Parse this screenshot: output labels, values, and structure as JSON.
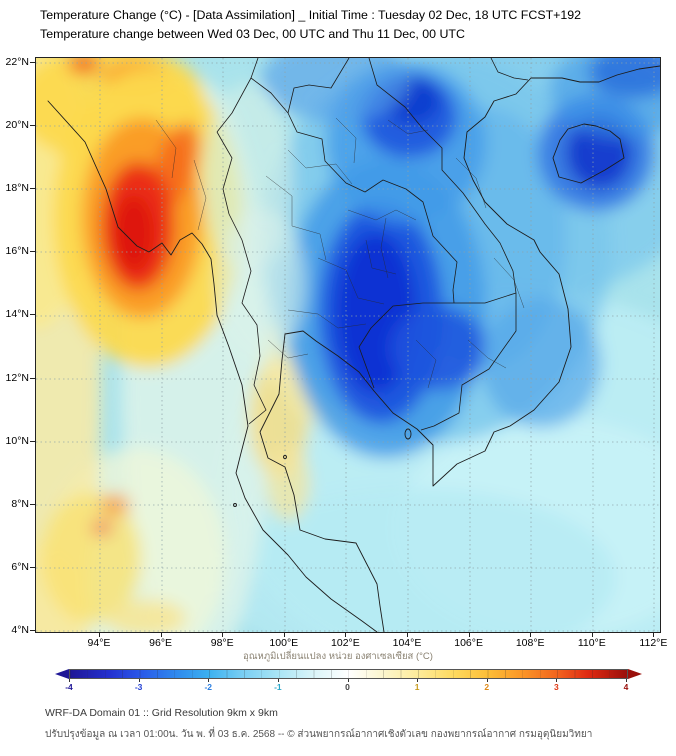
{
  "title": {
    "line1": "Temperature Change (°C) - [Data Assimilation] _ Initial Time : Tuesday 02 Dec, 18 UTC FCST+192",
    "line2": "Temperature change between Wed 03 Dec, 00 UTC and Thu 11 Dec, 00 UTC"
  },
  "map": {
    "lat_ticks": [
      "22°N",
      "20°N",
      "18°N",
      "16°N",
      "14°N",
      "12°N",
      "10°N",
      "8°N",
      "6°N",
      "4°N"
    ],
    "lon_ticks": [
      "94°E",
      "96°E",
      "98°E",
      "100°E",
      "102°E",
      "104°E",
      "106°E",
      "108°E",
      "110°E",
      "112°E"
    ],
    "extent": {
      "lon_min_E": 94,
      "lon_max_E": 112,
      "lat_min_N": 4,
      "lat_max_N": 22
    }
  },
  "colorbar": {
    "label": "อุณหภูมิเปลี่ยนแปลง หน่วย องศาเซลเซียส (°C)",
    "ticks": [
      {
        "v": "-4",
        "c": "#1f1796"
      },
      {
        "v": "-3",
        "c": "#2440d4"
      },
      {
        "v": "-2",
        "c": "#2a7de0"
      },
      {
        "v": "-1",
        "c": "#2aa6c8"
      },
      {
        "v": "0",
        "c": "#444444"
      },
      {
        "v": "1",
        "c": "#c79b1e"
      },
      {
        "v": "2",
        "c": "#e08a18"
      },
      {
        "v": "3",
        "c": "#e03914"
      },
      {
        "v": "4",
        "c": "#9a100b"
      }
    ],
    "stops": [
      {
        "p": 0,
        "c": "#1f1796"
      },
      {
        "p": 7,
        "c": "#2430cf"
      },
      {
        "p": 12.5,
        "c": "#2a57e8"
      },
      {
        "p": 19,
        "c": "#2f89ee"
      },
      {
        "p": 25,
        "c": "#3cb1f0"
      },
      {
        "p": 31,
        "c": "#79cef3"
      },
      {
        "p": 37.5,
        "c": "#aae5f5"
      },
      {
        "p": 44,
        "c": "#dcf5f9"
      },
      {
        "p": 50,
        "c": "#ffffff"
      },
      {
        "p": 56,
        "c": "#fcf6cf"
      },
      {
        "p": 62.5,
        "c": "#fdeb9a"
      },
      {
        "p": 69,
        "c": "#fdd95e"
      },
      {
        "p": 75,
        "c": "#fdbe38"
      },
      {
        "p": 81,
        "c": "#fb9727"
      },
      {
        "p": 87.5,
        "c": "#f2641e"
      },
      {
        "p": 93,
        "c": "#df2a12"
      },
      {
        "p": 100,
        "c": "#9a100b"
      }
    ]
  },
  "footer": {
    "line1": "WRF-DA Domain 01 :: Grid Resolution 9km x 9km",
    "line2": "ปรับปรุงข้อมูล ณ เวลา 01:00น. วัน พ. ที่ 03 ธ.ค. 2568 -- © ส่วนพยากรณ์อากาศเชิงตัวเลข กองพยากรณ์อากาศ กรมอุตุนิยมวิทยา"
  },
  "chart_data": {
    "type": "heatmap",
    "title": "Temperature change (°C) between Wed 03 Dec 00 UTC and Thu 11 Dec 00 UTC",
    "x_range_lon_E": [
      94,
      112
    ],
    "y_range_lat_N": [
      4,
      22
    ],
    "value_range_C": [
      -4,
      4
    ],
    "features": [
      {
        "label": "warming maximum over western Myanmar coast",
        "lon_E": 95.4,
        "lat_N": 17.0,
        "approx_value_C": 3.5
      },
      {
        "label": "surrounding warm area (yellow/orange band, west edge)",
        "lon_E": 95.5,
        "lat_N": 19.5,
        "approx_value_C": 1.5
      },
      {
        "label": "cooling maximum over central Indochina (NE Thailand/Cambodia)",
        "lon_E": 103.0,
        "lat_N": 13.8,
        "approx_value_C": -3.5
      },
      {
        "label": "cooling over northern Laos / northern Vietnam",
        "lon_E": 104.0,
        "lat_N": 20.0,
        "approx_value_C": -3.0
      },
      {
        "label": "cooling near Hainan",
        "lon_E": 110.2,
        "lat_N": 19.2,
        "approx_value_C": -3.0
      },
      {
        "label": "cooling at top-right corner",
        "lon_E": 111.5,
        "lat_N": 21.8,
        "approx_value_C": -3.0
      },
      {
        "label": "mild warming southern Thai peninsula",
        "lon_E": 99.8,
        "lat_N": 10.5,
        "approx_value_C": 1.0
      },
      {
        "label": "mild warming lower-left ocean area",
        "lon_E": 94.0,
        "lat_N": 6.5,
        "approx_value_C": 1.0
      },
      {
        "label": "background mild cooling over most of domain",
        "lon_E": null,
        "lat_N": null,
        "approx_value_C": -1.0
      }
    ]
  }
}
